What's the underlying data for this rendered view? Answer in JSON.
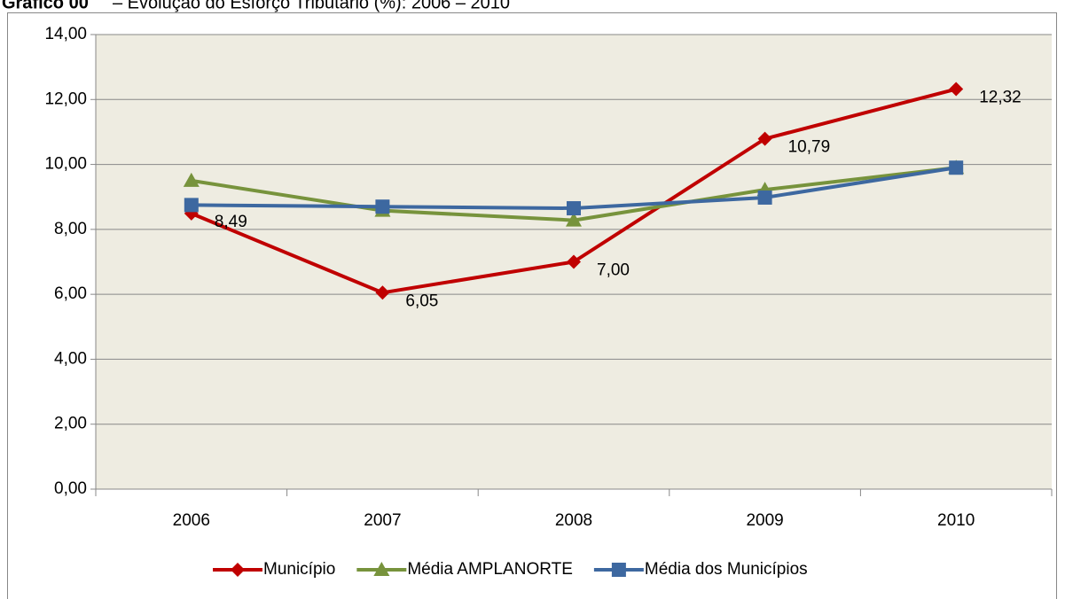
{
  "chart_data": {
    "type": "line",
    "title_label": "Gráfico 00",
    "title": "– Evolução do Esforço Tributário (%): 2006 – 2010",
    "categories": [
      "2006",
      "2007",
      "2008",
      "2009",
      "2010"
    ],
    "series": [
      {
        "name": "Município",
        "color": "#c00000",
        "marker": "diamond",
        "values": [
          8.49,
          6.05,
          7.0,
          10.79,
          12.32
        ],
        "value_labels": [
          "8,49",
          "6,05",
          "7,00",
          "10,79",
          "12,32"
        ]
      },
      {
        "name": "Média AMPLANORTE",
        "color": "#77933c",
        "marker": "triangle",
        "values": [
          9.5,
          8.58,
          8.28,
          9.22,
          9.9
        ]
      },
      {
        "name": "Média dos Municípios",
        "color": "#3d68a0",
        "marker": "square",
        "values": [
          8.75,
          8.7,
          8.65,
          8.98,
          9.9
        ]
      }
    ],
    "ylim": [
      0,
      14
    ],
    "yticks": [
      {
        "value": 0,
        "label": "0,00"
      },
      {
        "value": 2,
        "label": "2,00"
      },
      {
        "value": 4,
        "label": "4,00"
      },
      {
        "value": 6,
        "label": "6,00"
      },
      {
        "value": 8,
        "label": "8,00"
      },
      {
        "value": 10,
        "label": "10,00"
      },
      {
        "value": 12,
        "label": "12,00"
      },
      {
        "value": 14,
        "label": "14,00"
      }
    ],
    "grid": true,
    "legend": "bottom",
    "plot_background": "#eeece1"
  }
}
